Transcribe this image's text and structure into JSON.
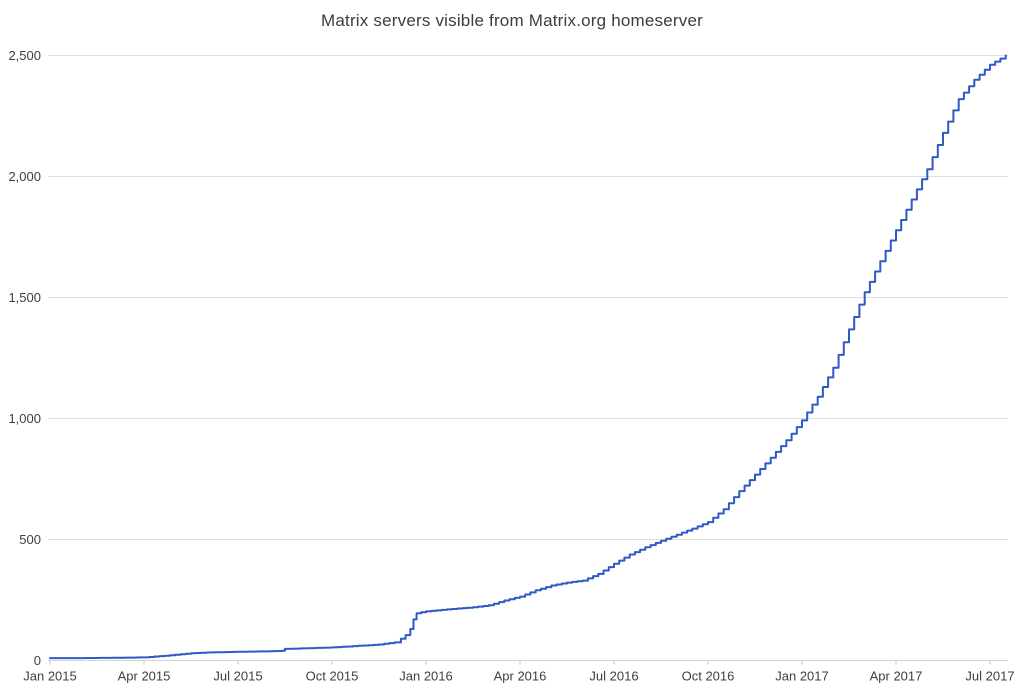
{
  "title": "Matrix servers visible from Matrix.org homeserver",
  "colors": {
    "line": "#2e59c7",
    "grid": "#dedede",
    "axis": "#d2d2d2",
    "tick": "#c9c9c9",
    "text": "#3f3f3f",
    "background": "#ffffff"
  },
  "chart_data": {
    "type": "line",
    "title": "Matrix servers visible from Matrix.org homeserver",
    "xlabel": "",
    "ylabel": "",
    "x_unit": "months since Jan 2015",
    "xlim": [
      0,
      30.6
    ],
    "ylim": [
      0,
      2500
    ],
    "grid": true,
    "legend": false,
    "y_ticks": [
      {
        "label": "0",
        "value": 0
      },
      {
        "label": "500",
        "value": 500
      },
      {
        "label": "1,000",
        "value": 1000
      },
      {
        "label": "1,500",
        "value": 1500
      },
      {
        "label": "2,000",
        "value": 2000
      },
      {
        "label": "2,500",
        "value": 2500
      }
    ],
    "x_ticks": [
      {
        "label": "Jan 2015",
        "month": 0
      },
      {
        "label": "Apr 2015",
        "month": 3
      },
      {
        "label": "Jul 2015",
        "month": 6
      },
      {
        "label": "Oct 2015",
        "month": 9
      },
      {
        "label": "Jan 2016",
        "month": 12
      },
      {
        "label": "Apr 2016",
        "month": 15
      },
      {
        "label": "Jul 2016",
        "month": 18
      },
      {
        "label": "Oct 2016",
        "month": 21
      },
      {
        "label": "Jan 2017",
        "month": 24
      },
      {
        "label": "Apr 2017",
        "month": 27
      },
      {
        "label": "Jul 2017",
        "month": 30
      }
    ],
    "series": [
      {
        "name": "Matrix servers",
        "points": [
          [
            0,
            10
          ],
          [
            1,
            10
          ],
          [
            2,
            11
          ],
          [
            3,
            13
          ],
          [
            3.5,
            18
          ],
          [
            4,
            24
          ],
          [
            4.5,
            30
          ],
          [
            5,
            33
          ],
          [
            6,
            36
          ],
          [
            7,
            38
          ],
          [
            7.4,
            40
          ],
          [
            7.5,
            48
          ],
          [
            8,
            50
          ],
          [
            8.5,
            52
          ],
          [
            9,
            54
          ],
          [
            9.5,
            58
          ],
          [
            10,
            62
          ],
          [
            10.5,
            66
          ],
          [
            11,
            75
          ],
          [
            11.2,
            90
          ],
          [
            11.35,
            105
          ],
          [
            11.5,
            130
          ],
          [
            11.6,
            170
          ],
          [
            11.7,
            195
          ],
          [
            12,
            203
          ],
          [
            12.5,
            209
          ],
          [
            13,
            215
          ],
          [
            13.5,
            220
          ],
          [
            14,
            228
          ],
          [
            14.5,
            248
          ],
          [
            15,
            264
          ],
          [
            15.5,
            290
          ],
          [
            16,
            310
          ],
          [
            16.5,
            322
          ],
          [
            17,
            330
          ],
          [
            17.5,
            358
          ],
          [
            18,
            400
          ],
          [
            18.5,
            438
          ],
          [
            19,
            468
          ],
          [
            19.5,
            495
          ],
          [
            20,
            520
          ],
          [
            20.5,
            545
          ],
          [
            21,
            572
          ],
          [
            21.5,
            625
          ],
          [
            22,
            700
          ],
          [
            22.5,
            768
          ],
          [
            23,
            838
          ],
          [
            23.5,
            910
          ],
          [
            24,
            992
          ],
          [
            24.5,
            1090
          ],
          [
            25,
            1210
          ],
          [
            25.5,
            1368
          ],
          [
            26,
            1522
          ],
          [
            26.5,
            1650
          ],
          [
            27,
            1778
          ],
          [
            27.5,
            1905
          ],
          [
            28,
            2030
          ],
          [
            28.5,
            2180
          ],
          [
            29,
            2320
          ],
          [
            29.5,
            2400
          ],
          [
            30,
            2462
          ],
          [
            30.5,
            2500
          ]
        ]
      }
    ]
  }
}
